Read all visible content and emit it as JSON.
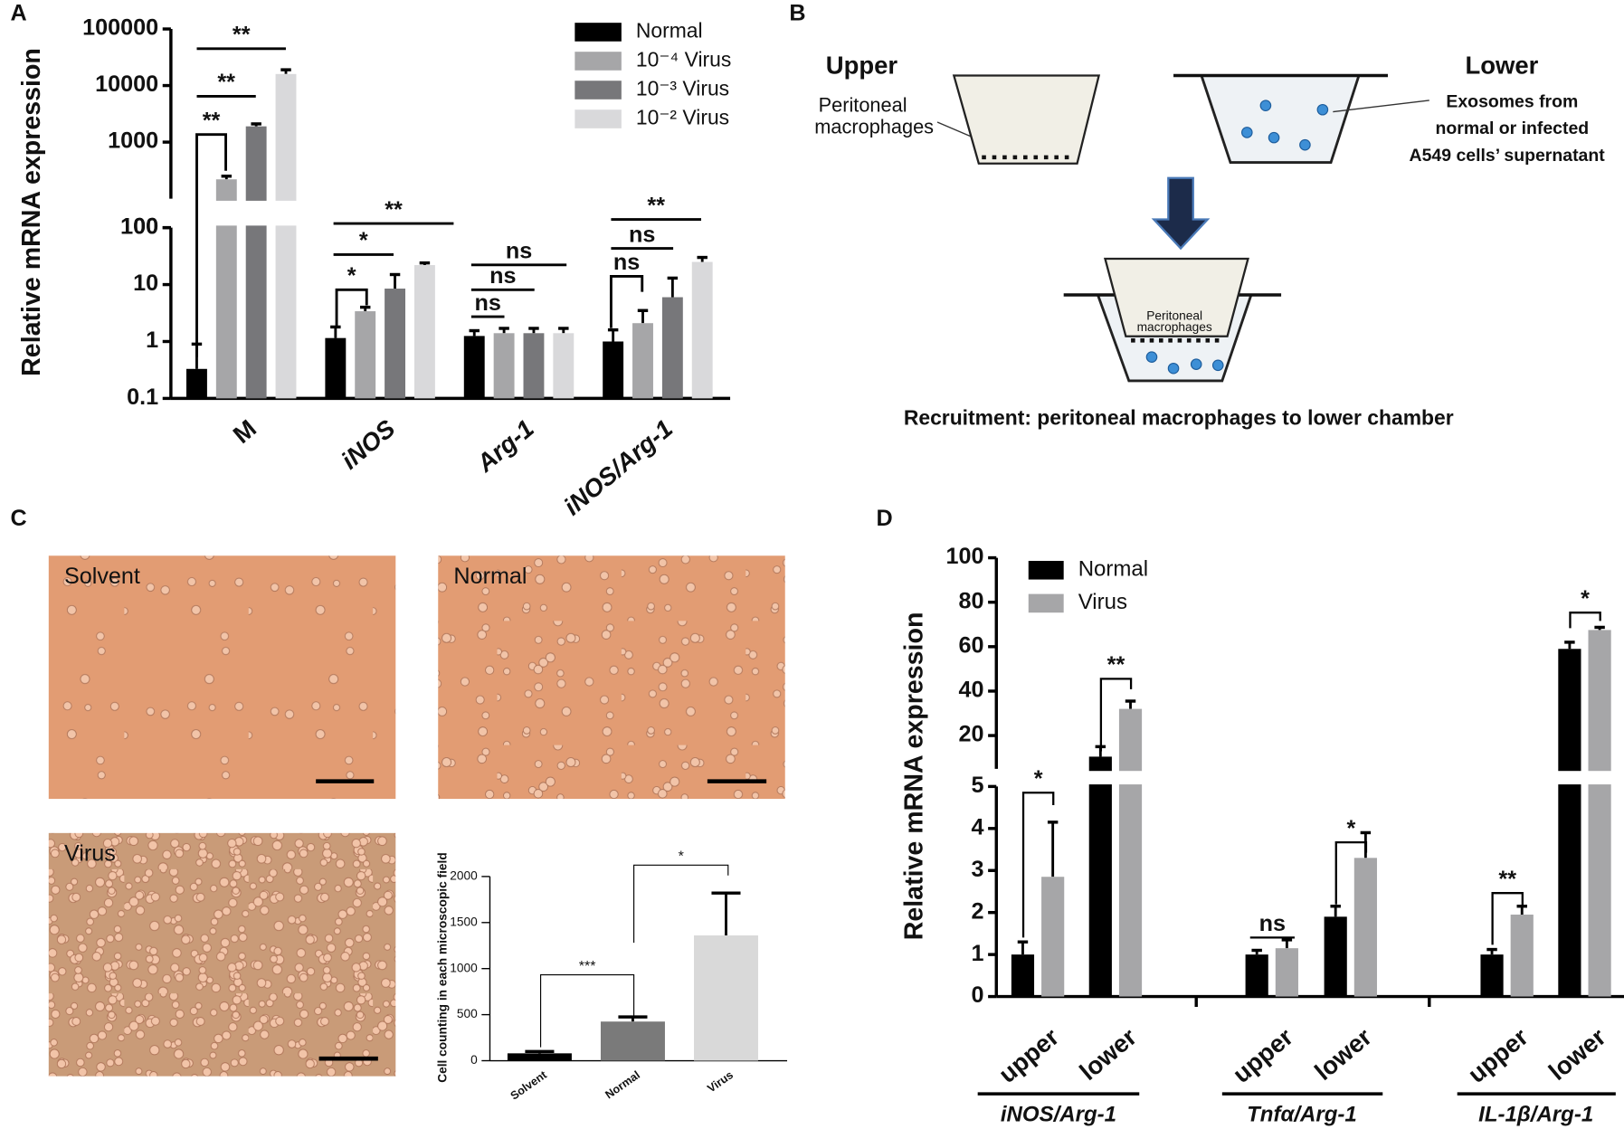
{
  "panels": [
    "A",
    "B",
    "C",
    "D"
  ],
  "chart_data": [
    {
      "type": "bar",
      "y_label": "Relative mRNA expression",
      "log_y": true,
      "legend": "upper right",
      "categories": [
        "M",
        "iNOS",
        "Arg-1",
        "iNOS/Arg-1"
      ],
      "y_segments": [
        {
          "ylim": [
            0.1,
            100
          ],
          "yticks": [
            0.1,
            1,
            10,
            100
          ]
        },
        {
          "ylim": [
            100,
            100000
          ],
          "yticks": [
            100,
            1000,
            10000,
            100000
          ]
        }
      ],
      "series": [
        {
          "name": "Normal",
          "color": "#000000",
          "values": [
            0.33,
            1.15,
            1.25,
            1.0
          ],
          "errors": [
            0.57,
            0.65,
            0.3,
            0.6
          ]
        },
        {
          "name": "10⁻⁴ Virus",
          "color": "#a6a6a8",
          "values": [
            220,
            3.4,
            1.4,
            2.1
          ],
          "errors": [
            30,
            0.6,
            0.3,
            1.4
          ]
        },
        {
          "name": "10⁻³ Virus",
          "color": "#77777a",
          "values": [
            1900,
            8.5,
            1.4,
            6
          ],
          "errors": [
            200,
            6.5,
            0.3,
            7
          ]
        },
        {
          "name": "10⁻² Virus",
          "color": "#d9d9db",
          "values": [
            16000,
            22,
            1.4,
            25
          ],
          "errors": [
            3000,
            2,
            0.3,
            5
          ]
        }
      ],
      "annotations": [
        "**",
        "**",
        "**",
        "*",
        "*",
        "**",
        "ns",
        "ns",
        "ns",
        "ns",
        "ns",
        "**"
      ]
    },
    {
      "type": "bar",
      "y_label": "Cell counting  in each microscopic field",
      "categories": [
        "Solvent",
        "Normal",
        "Virus"
      ],
      "values": [
        80,
        425,
        1360
      ],
      "errors": [
        20,
        50,
        460
      ],
      "colors": [
        "#000000",
        "#7a7a7a",
        "#d9d9d9"
      ],
      "y_segments": [
        {
          "ylim": [
            0,
            2000
          ],
          "yticks": [
            0,
            500,
            1000,
            1500,
            2000
          ]
        }
      ],
      "annotations": [
        "***",
        "*"
      ]
    },
    {
      "type": "bar",
      "y_label": "Relative mRNA expression",
      "legend": "upper left",
      "categories": [
        "upper",
        "lower",
        "upper",
        "lower",
        "upper",
        "lower"
      ],
      "groups": [
        "iNOS/Arg-1",
        "Tnfα/Arg-1",
        "IL-1β/Arg-1"
      ],
      "y_segments": [
        {
          "ylim": [
            0,
            5
          ],
          "yticks": [
            0,
            1,
            2,
            3,
            4,
            5
          ]
        },
        {
          "ylim": [
            5,
            100
          ],
          "yticks": [
            20,
            40,
            60,
            80,
            100
          ]
        }
      ],
      "series": [
        {
          "name": "Normal",
          "color": "#000000",
          "values": [
            1.0,
            10.5,
            1.0,
            1.9,
            1.0,
            59
          ],
          "errors": [
            0.3,
            4.5,
            0.1,
            0.25,
            0.12,
            3
          ]
        },
        {
          "name": "Virus",
          "color": "#a6a6a8",
          "values": [
            2.85,
            32,
            1.15,
            3.3,
            1.95,
            67.5
          ],
          "errors": [
            1.3,
            3.5,
            0.2,
            0.6,
            0.2,
            1.2
          ]
        }
      ],
      "annotations": [
        "*",
        "**",
        "ns",
        "*",
        "**",
        "*"
      ]
    }
  ],
  "diagram": {
    "upper": "Upper",
    "upper_label": [
      "Peritoneal",
      "macrophages"
    ],
    "lower": "Lower",
    "lower_label": [
      "Exosomes from",
      "normal or infected",
      "A549 cells’ supernatant"
    ],
    "inner_label": [
      "Peritoneal",
      "macrophages"
    ],
    "caption": "Recruitment: peritoneal macrophages to lower chamber"
  },
  "micrographs": [
    "Solvent",
    "Normal",
    "Virus"
  ]
}
